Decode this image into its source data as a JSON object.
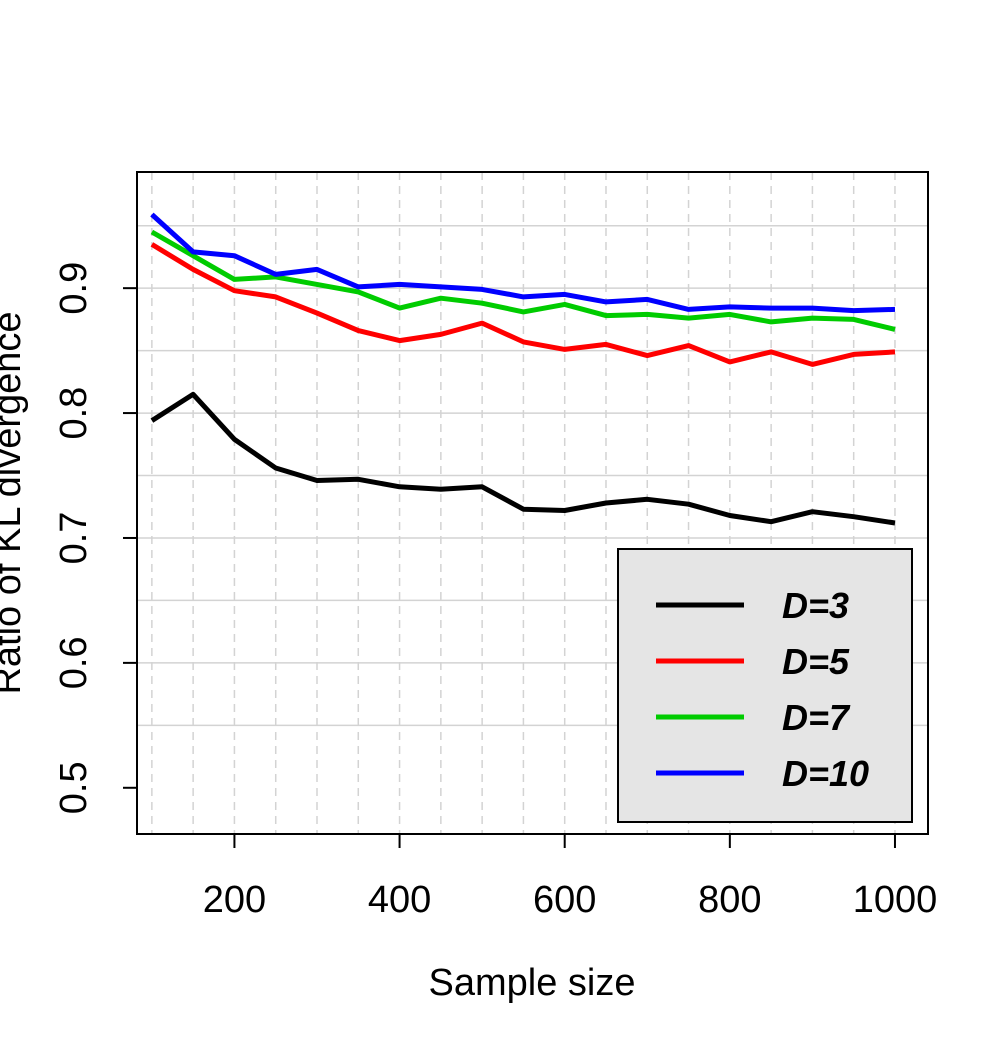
{
  "chart_data": {
    "type": "line",
    "xlabel": "Sample size",
    "ylabel": "Ratio of KL divergence",
    "xlim": [
      82,
      1040
    ],
    "ylim": [
      0.463,
      0.993
    ],
    "xticks": [
      200,
      400,
      600,
      800,
      1000
    ],
    "xtick_labels": [
      "200",
      "400",
      "600",
      "800",
      "1000"
    ],
    "yticks": [
      0.5,
      0.6,
      0.7,
      0.8,
      0.9
    ],
    "ytick_labels": [
      "0.5",
      "0.6",
      "0.7",
      "0.8",
      "0.9"
    ],
    "grid": true,
    "legend_position": "bottom-right",
    "x": [
      100,
      150,
      200,
      250,
      300,
      350,
      400,
      450,
      500,
      550,
      600,
      650,
      700,
      750,
      800,
      850,
      900,
      950,
      1000
    ],
    "series": [
      {
        "name": "D=3",
        "color": "#000000",
        "values": [
          0.794,
          0.815,
          0.779,
          0.756,
          0.746,
          0.747,
          0.741,
          0.739,
          0.741,
          0.723,
          0.722,
          0.728,
          0.731,
          0.727,
          0.718,
          0.713,
          0.721,
          0.717,
          0.712
        ]
      },
      {
        "name": "D=5",
        "color": "#ff0000",
        "values": [
          0.935,
          0.915,
          0.898,
          0.893,
          0.88,
          0.866,
          0.858,
          0.863,
          0.872,
          0.857,
          0.851,
          0.855,
          0.846,
          0.854,
          0.841,
          0.849,
          0.839,
          0.847,
          0.849
        ]
      },
      {
        "name": "D=7",
        "color": "#00cc00",
        "values": [
          0.945,
          0.926,
          0.907,
          0.909,
          0.903,
          0.897,
          0.884,
          0.892,
          0.888,
          0.881,
          0.887,
          0.878,
          0.879,
          0.876,
          0.879,
          0.873,
          0.876,
          0.875,
          0.867
        ]
      },
      {
        "name": "D=10",
        "color": "#0000ff",
        "values": [
          0.959,
          0.929,
          0.926,
          0.911,
          0.915,
          0.901,
          0.903,
          0.901,
          0.899,
          0.893,
          0.895,
          0.889,
          0.891,
          0.883,
          0.885,
          0.884,
          0.884,
          0.882,
          0.883
        ]
      }
    ]
  }
}
